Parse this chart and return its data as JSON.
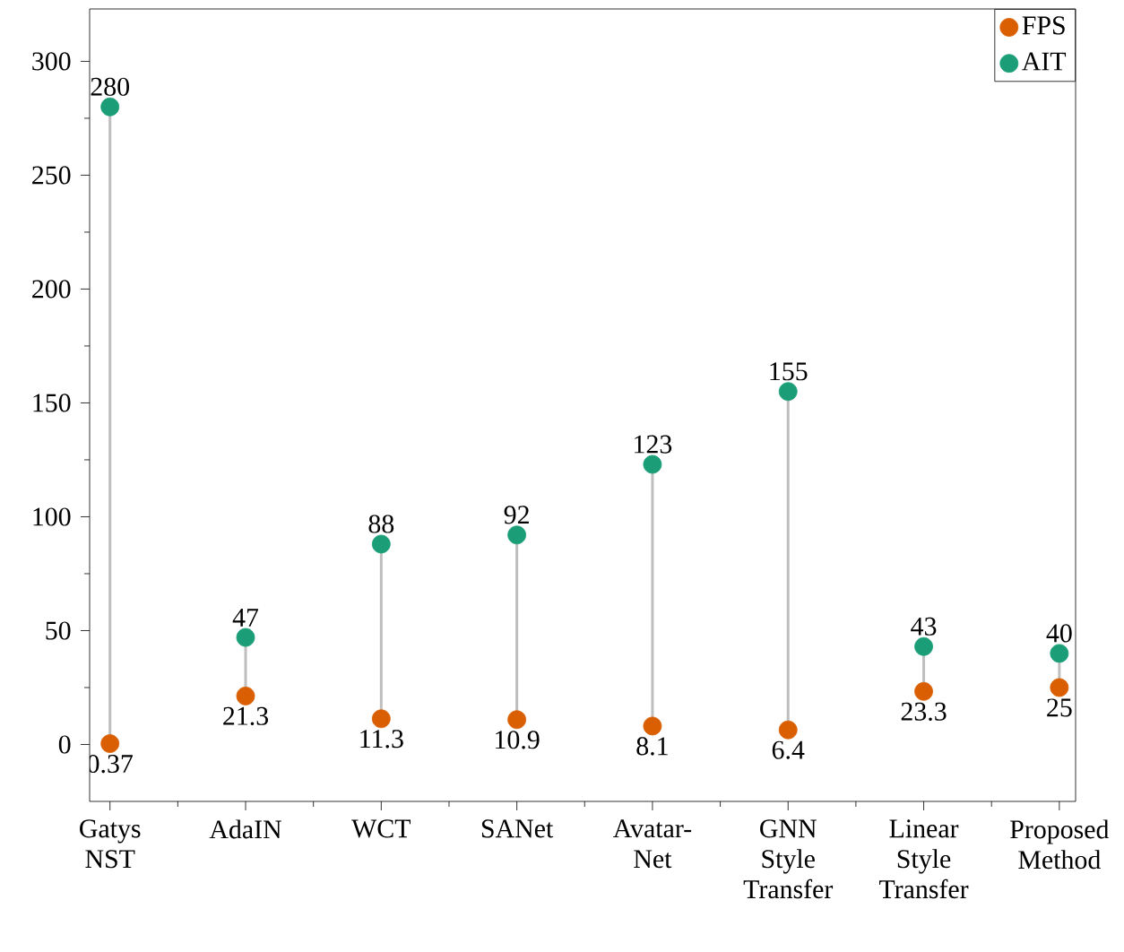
{
  "chart_data": {
    "type": "scatter",
    "categories": [
      "Gatys NST",
      "AdaIN",
      "WCT",
      "SANet",
      "Avatar-Net",
      "GNN Style Transfer",
      "Linear Style Transfer",
      "Proposed Method"
    ],
    "series": [
      {
        "name": "FPS",
        "color": "#d95f02",
        "values": [
          0.37,
          21.3,
          11.3,
          10.9,
          8.1,
          6.4,
          23.3,
          25
        ]
      },
      {
        "name": "AIT",
        "color": "#1b9e77",
        "values": [
          280,
          47,
          88,
          92,
          123,
          155,
          43,
          40
        ]
      }
    ],
    "ylim": [
      -25,
      323
    ],
    "yticks": [
      0,
      50,
      100,
      150,
      200,
      250,
      300
    ],
    "data_labels": true,
    "legend": "top right"
  }
}
